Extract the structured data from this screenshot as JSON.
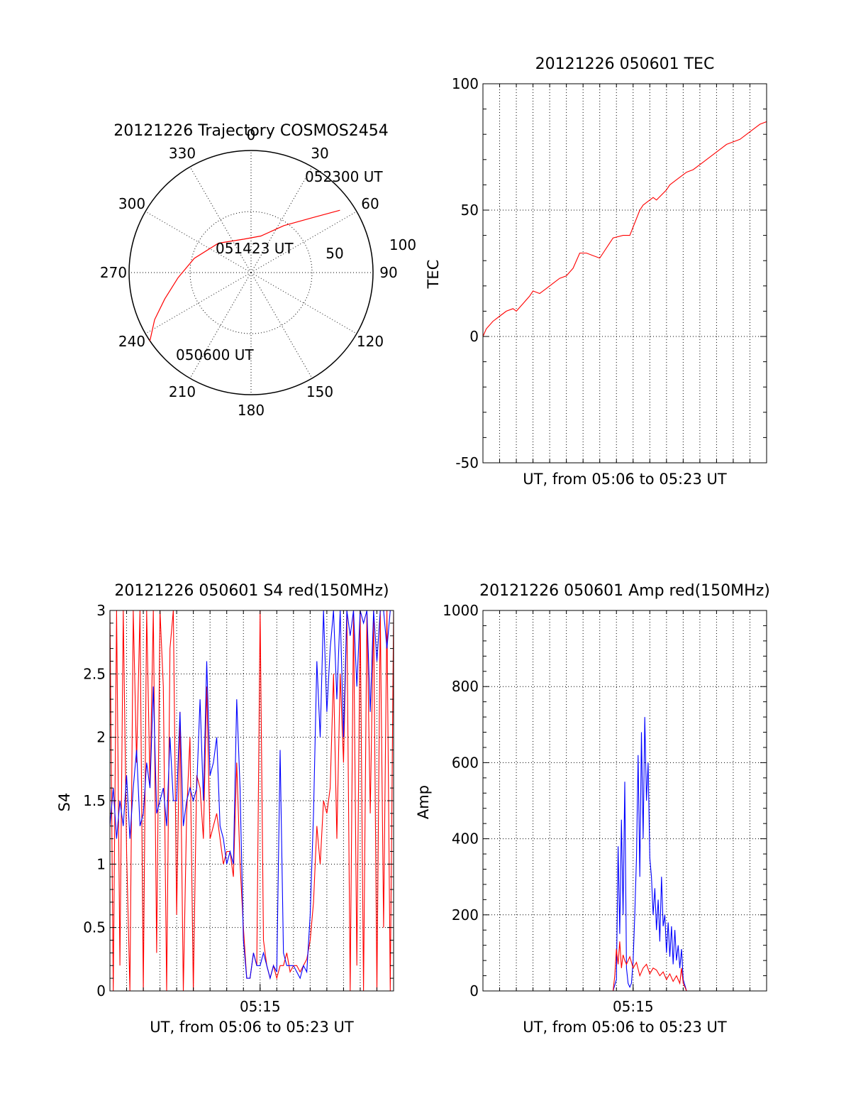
{
  "colors": {
    "red": "#ff0000",
    "blue": "#0000ff",
    "axis": "#000000"
  },
  "chart_data": [
    {
      "id": "trajectory",
      "type": "polar",
      "title": "20121226 Trajectory COSMOS2454",
      "azimuth_labels": [
        "0",
        "30",
        "60",
        "90",
        "120",
        "150",
        "180",
        "210",
        "240",
        "270",
        "300",
        "330"
      ],
      "elevation_rings": [
        {
          "zenith_distance": 50,
          "label": "50"
        },
        {
          "zenith_distance": 100,
          "label": "100"
        }
      ],
      "track": {
        "color": "red",
        "points": [
          {
            "az": 236,
            "zd": 100
          },
          {
            "az": 244,
            "zd": 88
          },
          {
            "az": 253,
            "zd": 74
          },
          {
            "az": 266,
            "zd": 60
          },
          {
            "az": 284,
            "zd": 48
          },
          {
            "az": 312,
            "zd": 36
          },
          {
            "az": 348,
            "zd": 28
          },
          {
            "az": 15,
            "zd": 31
          },
          {
            "az": 35,
            "zd": 47
          },
          {
            "az": 48,
            "zd": 67
          },
          {
            "az": 55,
            "zd": 89
          }
        ]
      },
      "annotations": [
        {
          "text": "052300 UT",
          "az": 55,
          "zd": 89
        },
        {
          "text": "051423 UT",
          "az": 330,
          "zd": 14
        },
        {
          "text": "050600 UT",
          "az": 225,
          "zd": 98
        }
      ]
    },
    {
      "id": "tec",
      "type": "line",
      "title": "20121226 050601 TEC",
      "xlabel": "UT, from 05:06 to 05:23 UT",
      "ylabel": "TEC",
      "xlim": [
        0,
        17
      ],
      "ylim": [
        -50,
        100
      ],
      "yticks": [
        -50,
        0,
        50,
        100
      ],
      "xticks": [],
      "series": [
        {
          "color": "red",
          "x": [
            0,
            0.2,
            0.6,
            1.0,
            1.4,
            1.8,
            2.0,
            2.4,
            2.8,
            3.0,
            3.4,
            3.8,
            4.2,
            4.6,
            5.0,
            5.4,
            5.8,
            6.2,
            6.6,
            7.0,
            7.2,
            7.6,
            7.8,
            8.4,
            8.6,
            8.8,
            9.4,
            9.6,
            9.8,
            10.2,
            10.4,
            11.0,
            11.2,
            11.4,
            11.8,
            12.2,
            12.6,
            13.0,
            13.4,
            13.8,
            14.2,
            14.6,
            15.0,
            15.4,
            15.8,
            16.2,
            16.6,
            17.0
          ],
          "y": [
            0,
            3,
            6,
            8,
            10,
            11,
            10,
            13,
            16,
            18,
            17,
            19,
            21,
            23,
            24,
            27,
            33,
            33,
            32,
            31,
            33,
            37,
            39,
            40,
            40,
            40,
            50,
            52,
            53,
            55,
            54,
            58,
            60,
            61,
            63,
            65,
            66,
            68,
            70,
            72,
            74,
            76,
            77,
            78,
            80,
            82,
            84,
            85
          ]
        }
      ]
    },
    {
      "id": "s4",
      "type": "line",
      "title": "20121226 050601 S4 red(150MHz)",
      "xlabel": "UT, from 05:06 to 05:23 UT",
      "ylabel": "S4",
      "xlim": [
        0,
        17
      ],
      "ylim": [
        0,
        3
      ],
      "yticks": [
        0,
        0.5,
        1,
        1.5,
        2,
        2.5,
        3
      ],
      "ytick_labels": [
        "0",
        "0.5",
        "1",
        "1.5",
        "2",
        "2.5",
        "3"
      ],
      "xticks": [
        {
          "x": 9,
          "label": "05:15"
        }
      ],
      "series": [
        {
          "name": "",
          "color": "red",
          "x": [
            0,
            0.2,
            0.4,
            0.6,
            0.8,
            1.0,
            1.2,
            1.4,
            1.6,
            1.8,
            2.0,
            2.2,
            2.4,
            2.6,
            2.8,
            3.0,
            3.2,
            3.4,
            3.6,
            3.8,
            4.0,
            4.2,
            4.4,
            4.6,
            4.8,
            5.0,
            5.2,
            5.4,
            5.6,
            5.8,
            6.0,
            6.2,
            6.4,
            6.6,
            6.8,
            7.0,
            7.2,
            7.4,
            7.6,
            7.8,
            8.0,
            8.2,
            8.4,
            8.6,
            8.8,
            9.0,
            9.2,
            9.4,
            9.6,
            9.8,
            10.0,
            10.2,
            10.4,
            10.6,
            10.8,
            11.0,
            11.2,
            11.4,
            11.6,
            11.8,
            12.0,
            12.2,
            12.4,
            12.6,
            12.8,
            13.0,
            13.2,
            13.4,
            13.6,
            13.8,
            14.0,
            14.2,
            14.4,
            14.6,
            14.8,
            15.0,
            15.2,
            15.4,
            15.6,
            15.8,
            16.0,
            16.2,
            16.4,
            16.6,
            16.8,
            17.0
          ],
          "y": [
            3,
            0,
            3,
            0.2,
            3,
            1.1,
            0,
            3,
            1.8,
            3,
            0,
            3,
            1.6,
            3,
            0.3,
            3,
            2.4,
            0,
            2.7,
            3,
            0.6,
            2.2,
            0,
            1.4,
            2.0,
            0,
            1.7,
            1.6,
            1.2,
            2.4,
            1.2,
            1.3,
            1.4,
            1.2,
            1.0,
            1.1,
            1.1,
            0.9,
            1.8,
            1.0,
            0.5,
            0.1,
            0.1,
            0.3,
            0.2,
            3,
            0.4,
            0.2,
            0.1,
            0.2,
            0.1,
            0.2,
            0.2,
            0.3,
            0.15,
            0.2,
            0.2,
            0.15,
            0.2,
            0.25,
            0.4,
            0.7,
            1.3,
            1.0,
            1.5,
            1.4,
            1.6,
            2.5,
            1.2,
            2.5,
            1.8,
            3,
            0,
            3,
            0.2,
            3,
            0,
            3,
            1.4,
            3,
            0,
            3,
            0.5,
            3,
            0,
            3
          ]
        },
        {
          "name": "",
          "color": "blue",
          "x": [
            0,
            0.2,
            0.4,
            0.6,
            0.8,
            1.0,
            1.2,
            1.4,
            1.6,
            1.8,
            2.0,
            2.2,
            2.4,
            2.6,
            2.8,
            3.0,
            3.2,
            3.4,
            3.6,
            3.8,
            4.0,
            4.2,
            4.4,
            4.6,
            4.8,
            5.0,
            5.2,
            5.4,
            5.6,
            5.8,
            6.0,
            6.2,
            6.4,
            6.6,
            6.8,
            7.0,
            7.2,
            7.4,
            7.6,
            7.8,
            8.0,
            8.2,
            8.4,
            8.6,
            8.8,
            9.0,
            9.2,
            9.4,
            9.6,
            9.8,
            10.0,
            10.2,
            10.4,
            10.6,
            10.8,
            11.0,
            11.2,
            11.4,
            11.6,
            11.8,
            12.0,
            12.2,
            12.4,
            12.6,
            12.8,
            13.0,
            13.2,
            13.4,
            13.6,
            13.8,
            14.0,
            14.2,
            14.4,
            14.6,
            14.8,
            15.0,
            15.2,
            15.4,
            15.6,
            15.8,
            16.0,
            16.2,
            16.4,
            16.6,
            16.8,
            17.0
          ],
          "y": [
            1.3,
            1.6,
            1.2,
            1.5,
            1.3,
            1.7,
            1.2,
            1.6,
            1.9,
            1.3,
            1.4,
            1.8,
            1.6,
            2.4,
            1.4,
            1.5,
            1.6,
            1.3,
            2.0,
            1.5,
            1.5,
            2.2,
            1.3,
            1.5,
            1.6,
            1.5,
            1.6,
            2.3,
            1.5,
            2.6,
            1.7,
            1.8,
            2.0,
            1.3,
            1.2,
            1.0,
            1.1,
            1.0,
            2.3,
            1.6,
            0.4,
            0.1,
            0.1,
            0.3,
            0.2,
            0.2,
            0.3,
            0.2,
            0.1,
            0.2,
            0.15,
            1.9,
            0.3,
            0.2,
            0.2,
            0.2,
            0.15,
            0.1,
            0.2,
            0.15,
            0.6,
            1.4,
            2.6,
            2.0,
            3,
            2.2,
            2.7,
            3,
            2.3,
            3,
            2.0,
            3,
            2.8,
            3,
            2.4,
            3,
            2.9,
            3,
            2.2,
            3,
            2.6,
            3,
            3,
            2.7,
            3,
            3
          ]
        }
      ]
    },
    {
      "id": "amp",
      "type": "line",
      "title": "20121226 050601 Amp red(150MHz)",
      "xlabel": "UT, from 05:06 to 05:23 UT",
      "ylabel": "Amp",
      "xlim": [
        0,
        17
      ],
      "ylim": [
        0,
        1000
      ],
      "yticks": [
        0,
        200,
        400,
        600,
        800,
        1000
      ],
      "xticks": [
        {
          "x": 9,
          "label": "05:15"
        }
      ],
      "series": [
        {
          "name": "",
          "color": "blue",
          "x": [
            0,
            7.8,
            8.0,
            8.1,
            8.2,
            8.3,
            8.4,
            8.5,
            8.6,
            8.7,
            8.8,
            8.9,
            9.0,
            9.1,
            9.2,
            9.3,
            9.4,
            9.5,
            9.6,
            9.7,
            9.8,
            9.9,
            10.0,
            10.1,
            10.2,
            10.3,
            10.4,
            10.5,
            10.6,
            10.7,
            10.8,
            10.9,
            11.0,
            11.1,
            11.2,
            11.3,
            11.4,
            11.5,
            11.6,
            11.7,
            11.8,
            11.9,
            12.0,
            12.2,
            17.0
          ],
          "y": [
            0,
            0,
            30,
            380,
            150,
            450,
            200,
            550,
            60,
            20,
            10,
            20,
            80,
            200,
            350,
            620,
            300,
            680,
            400,
            720,
            500,
            600,
            350,
            300,
            200,
            270,
            160,
            240,
            130,
            300,
            170,
            200,
            100,
            180,
            90,
            170,
            70,
            160,
            80,
            120,
            60,
            110,
            30,
            0,
            0
          ]
        },
        {
          "name": "",
          "color": "red",
          "x": [
            0,
            7.8,
            7.9,
            8.0,
            8.1,
            8.2,
            8.3,
            8.4,
            8.5,
            8.6,
            8.8,
            9.0,
            9.2,
            9.4,
            9.6,
            9.8,
            10.0,
            10.2,
            10.4,
            10.6,
            10.8,
            11.0,
            11.2,
            11.4,
            11.6,
            11.8,
            11.9,
            12.0,
            12.2,
            17.0
          ],
          "y": [
            0,
            0,
            40,
            110,
            70,
            130,
            60,
            95,
            80,
            70,
            90,
            60,
            75,
            40,
            60,
            70,
            45,
            60,
            55,
            40,
            50,
            30,
            45,
            25,
            40,
            20,
            60,
            20,
            0,
            0
          ]
        }
      ]
    }
  ]
}
